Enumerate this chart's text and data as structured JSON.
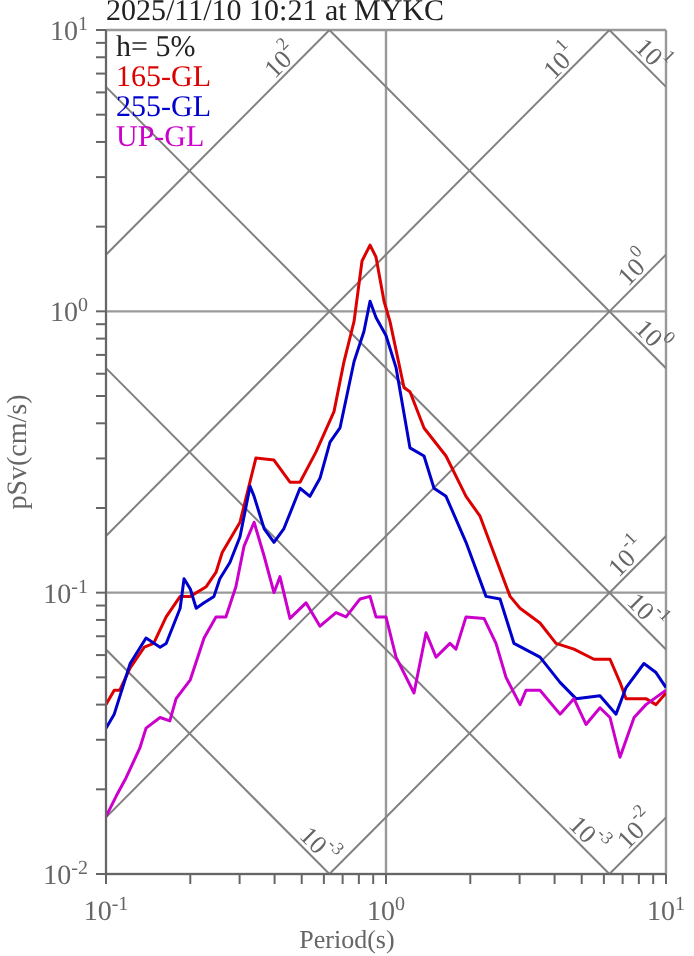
{
  "chart_data": {
    "type": "line",
    "title": "2025/11/10 10:21 at MYKC",
    "xlabel": "Period(s)",
    "ylabel": "pSv(cm/s)",
    "legend_title": "h= 5%",
    "legend": "top left",
    "log": "xy",
    "grid": true,
    "marker": "none",
    "line_style": "solid",
    "xlim": [
      0.1,
      10
    ],
    "ylim": [
      0.01,
      10
    ],
    "xticks": [
      {
        "value": 0.1,
        "label": "10$^{-1}$"
      },
      {
        "value": 0.2,
        "label": null
      },
      {
        "value": 0.3,
        "label": null
      },
      {
        "value": 0.4,
        "label": null
      },
      {
        "value": 0.5,
        "label": null
      },
      {
        "value": 0.6,
        "label": null
      },
      {
        "value": 0.7,
        "label": null
      },
      {
        "value": 0.8,
        "label": null
      },
      {
        "value": 0.9,
        "label": null
      },
      {
        "value": 1,
        "label": "10$^{0}$"
      },
      {
        "value": 2,
        "label": null
      },
      {
        "value": 3,
        "label": null
      },
      {
        "value": 4,
        "label": null
      },
      {
        "value": 5,
        "label": null
      },
      {
        "value": 6,
        "label": null
      },
      {
        "value": 7,
        "label": null
      },
      {
        "value": 8,
        "label": null
      },
      {
        "value": 9,
        "label": null
      },
      {
        "value": 10,
        "label": "10$^{1}$"
      }
    ],
    "yticks": [
      {
        "value": 0.01,
        "label": "10$^{-2}$"
      },
      {
        "value": 0.02,
        "label": null
      },
      {
        "value": 0.03,
        "label": null
      },
      {
        "value": 0.04,
        "label": null
      },
      {
        "value": 0.05,
        "label": null
      },
      {
        "value": 0.06,
        "label": null
      },
      {
        "value": 0.07,
        "label": null
      },
      {
        "value": 0.08,
        "label": null
      },
      {
        "value": 0.09,
        "label": null
      },
      {
        "value": 0.1,
        "label": "10$^{-1}$"
      },
      {
        "value": 0.2,
        "label": null
      },
      {
        "value": 0.3,
        "label": null
      },
      {
        "value": 0.4,
        "label": null
      },
      {
        "value": 0.5,
        "label": null
      },
      {
        "value": 0.6,
        "label": null
      },
      {
        "value": 0.7,
        "label": null
      },
      {
        "value": 0.8,
        "label": null
      },
      {
        "value": 0.9,
        "label": null
      },
      {
        "value": 1,
        "label": "10$^{0}$"
      },
      {
        "value": 2,
        "label": null
      },
      {
        "value": 3,
        "label": null
      },
      {
        "value": 4,
        "label": null
      },
      {
        "value": 5,
        "label": null
      },
      {
        "value": 6,
        "label": null
      },
      {
        "value": 7,
        "label": null
      },
      {
        "value": 8,
        "label": null
      },
      {
        "value": 9,
        "label": null
      },
      {
        "value": 10,
        "label": "10$^{1}$"
      }
    ],
    "series": [
      {
        "color": "#808080",
        "x": [
          0.1,
          0.628
        ],
        "values": [
          1.59,
          10
        ]
      },
      {
        "color": "#808080",
        "x": [
          0.1,
          6.28
        ],
        "values": [
          0.159,
          10
        ]
      },
      {
        "color": "#808080",
        "x": [
          0.1,
          10
        ],
        "values": [
          0.0159,
          1.59
        ]
      },
      {
        "color": "#808080",
        "x": [
          0.628,
          10
        ],
        "values": [
          0.01,
          0.159
        ]
      },
      {
        "color": "#808080",
        "x": [
          6.28,
          10
        ],
        "values": [
          0.01,
          0.0159
        ]
      },
      {
        "color": "#808080",
        "x": [
          6.28,
          10
        ],
        "values": [
          10,
          6.28
        ]
      },
      {
        "color": "#808080",
        "x": [
          0.628,
          10
        ],
        "values": [
          10,
          0.628
        ]
      },
      {
        "color": "#808080",
        "x": [
          0.1,
          10
        ],
        "values": [
          6.28,
          0.0628
        ]
      },
      {
        "color": "#808080",
        "x": [
          0.1,
          6.28
        ],
        "values": [
          0.628,
          0.01
        ]
      },
      {
        "color": "#808080",
        "x": [
          0.1,
          0.628
        ],
        "values": [
          0.0628,
          0.01
        ]
      },
      {
        "name": "165-GL",
        "color": "#dd0000",
        "x": [
          0.1,
          0.107,
          0.112,
          0.122,
          0.137,
          0.148,
          0.164,
          0.184,
          0.2,
          0.228,
          0.247,
          0.26,
          0.301,
          0.343,
          0.398,
          0.454,
          0.493,
          0.562,
          0.652,
          0.708,
          0.769,
          0.821,
          0.877,
          0.921,
          0.984,
          1.033,
          1.16,
          1.218,
          1.367,
          1.638,
          1.931,
          2.167,
          2.774,
          3.011,
          3.548,
          4.047,
          4.69,
          5.53,
          6.31,
          6.85,
          7.2,
          8.48,
          9.21,
          10
        ],
        "values": [
          0.04,
          0.045,
          0.045,
          0.054,
          0.064,
          0.066,
          0.082,
          0.097,
          0.097,
          0.105,
          0.118,
          0.139,
          0.178,
          0.301,
          0.296,
          0.247,
          0.247,
          0.316,
          0.44,
          0.663,
          0.921,
          1.51,
          1.72,
          1.56,
          1.086,
          0.921,
          0.535,
          0.518,
          0.385,
          0.306,
          0.22,
          0.187,
          0.097,
          0.088,
          0.078,
          0.066,
          0.063,
          0.058,
          0.058,
          0.048,
          0.042,
          0.042,
          0.04,
          0.044
        ]
      },
      {
        "name": "255-GL",
        "color": "#0000cc",
        "x": [
          0.1,
          0.107,
          0.122,
          0.139,
          0.156,
          0.164,
          0.184,
          0.19,
          0.2,
          0.21,
          0.224,
          0.243,
          0.255,
          0.277,
          0.301,
          0.327,
          0.338,
          0.367,
          0.398,
          0.432,
          0.493,
          0.535,
          0.581,
          0.631,
          0.685,
          0.769,
          0.834,
          0.877,
          0.921,
          1,
          1.086,
          1.218,
          1.367,
          1.484,
          1.638,
          1.931,
          2.276,
          2.554,
          2.865,
          3.548,
          4.183,
          4.77,
          5.81,
          6.63,
          7.2,
          8.34,
          9.21,
          10
        ],
        "values": [
          0.033,
          0.037,
          0.056,
          0.069,
          0.064,
          0.066,
          0.088,
          0.112,
          0.103,
          0.088,
          0.092,
          0.097,
          0.112,
          0.128,
          0.158,
          0.239,
          0.22,
          0.169,
          0.151,
          0.169,
          0.235,
          0.22,
          0.255,
          0.343,
          0.385,
          0.663,
          0.848,
          1.086,
          0.95,
          0.821,
          0.631,
          0.327,
          0.306,
          0.235,
          0.22,
          0.151,
          0.097,
          0.095,
          0.066,
          0.059,
          0.048,
          0.042,
          0.043,
          0.037,
          0.046,
          0.056,
          0.052,
          0.046
        ]
      },
      {
        "name": "UP-GL",
        "color": "#cc00cc",
        "x": [
          0.1,
          0.109,
          0.118,
          0.132,
          0.139,
          0.156,
          0.169,
          0.178,
          0.2,
          0.224,
          0.247,
          0.268,
          0.291,
          0.311,
          0.338,
          0.367,
          0.398,
          0.418,
          0.454,
          0.518,
          0.581,
          0.663,
          0.72,
          0.808,
          0.877,
          0.921,
          1,
          1.086,
          1.259,
          1.39,
          1.509,
          1.692,
          1.778,
          1.931,
          2.239,
          2.471,
          2.683,
          3.011,
          3.162,
          3.548,
          4.183,
          4.69,
          5.179,
          5.81,
          6.31,
          6.85,
          7.69,
          8.48,
          10
        ],
        "values": [
          0.016,
          0.019,
          0.022,
          0.028,
          0.033,
          0.036,
          0.035,
          0.042,
          0.049,
          0.069,
          0.082,
          0.082,
          0.105,
          0.146,
          0.178,
          0.135,
          0.1,
          0.114,
          0.081,
          0.092,
          0.076,
          0.085,
          0.082,
          0.095,
          0.097,
          0.082,
          0.082,
          0.059,
          0.044,
          0.072,
          0.059,
          0.066,
          0.063,
          0.082,
          0.081,
          0.066,
          0.05,
          0.04,
          0.045,
          0.045,
          0.037,
          0.042,
          0.034,
          0.039,
          0.036,
          0.026,
          0.036,
          0.04,
          0.045
        ]
      }
    ],
    "annotations": [
      {
        "text": "10$^{2}$",
        "x": 0.454,
        "y": 7.23
      },
      {
        "text": "10$^{1}$",
        "x": 4.5,
        "y": 7.16
      },
      {
        "text": "10$^{1}$",
        "x": 8.3,
        "y": 7.57
      },
      {
        "text": "10$^{0}$",
        "x": 8.3,
        "y": 1.321
      },
      {
        "text": "10$^{0}$",
        "x": 8.3,
        "y": 0.757
      },
      {
        "text": "10$^{-1}$",
        "x": 7.8,
        "y": 0.124
      },
      {
        "text": "10$^{-1}$",
        "x": 7.9,
        "y": 0.0795
      },
      {
        "text": "10$^{-3}$",
        "x": 0.535,
        "y": 0.01174
      },
      {
        "text": "10$^{-3}$",
        "x": 4.9,
        "y": 0.01282
      },
      {
        "text": "10$^{-2}$",
        "x": 8.4,
        "y": 0.01337
      }
    ]
  }
}
